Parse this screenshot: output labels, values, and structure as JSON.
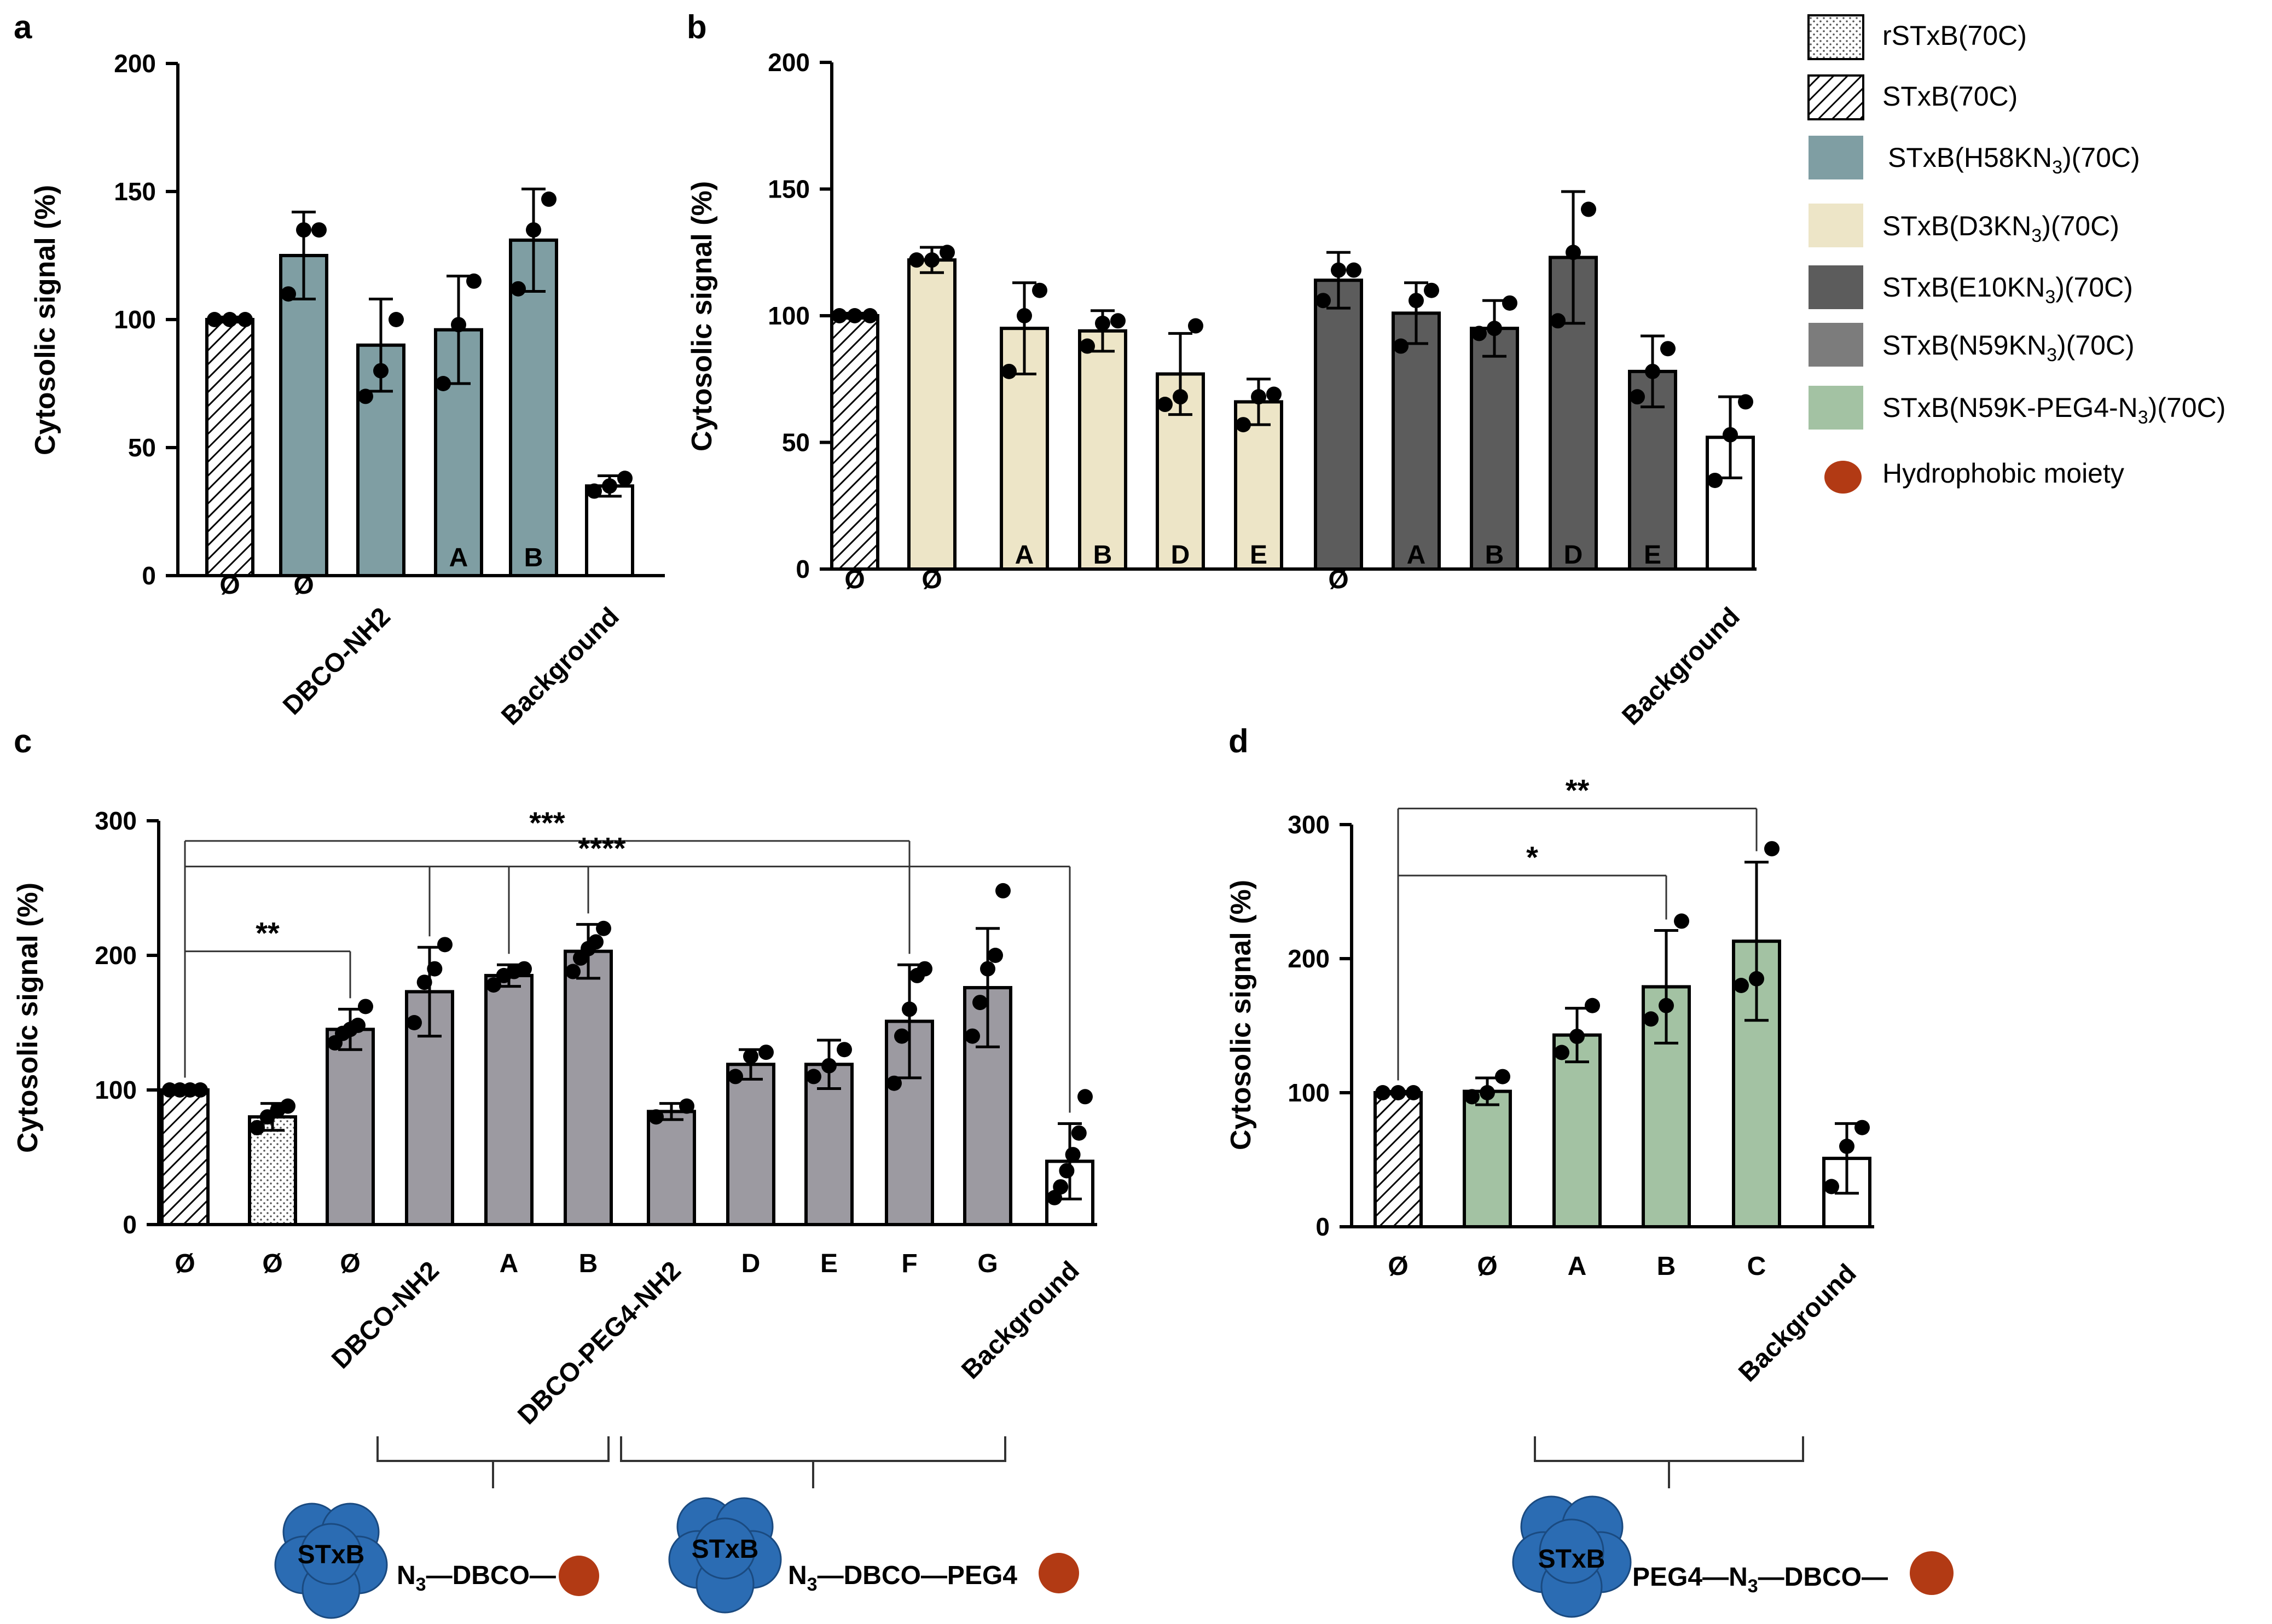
{
  "colors": {
    "teal": "#7f9ea3",
    "cream": "#ede5c7",
    "dark": "#5c5c5c",
    "gray": "#9c9aa1",
    "green": "#a3c2a3",
    "white": "#ffffff",
    "moiety": "#b23a14",
    "stxb": "#2b6cb3"
  },
  "legend": {
    "items": [
      {
        "label": "rSTxB(70C)",
        "style": "dots"
      },
      {
        "label": "STxB(70C)",
        "style": "hatch"
      },
      {
        "label": "STxB(H58KN3)(70C)",
        "style": "teal"
      },
      {
        "label": "STxB(D3KN3)(70C)",
        "style": "cream"
      },
      {
        "label": "STxB(E10KN3)(70C)",
        "style": "dark"
      },
      {
        "label": "STxB(N59KN3)(70C)",
        "style": "gray"
      },
      {
        "label": "STxB(N59K-PEG4-N3)(70C)",
        "style": "green"
      },
      {
        "label": "Hydrophobic moiety",
        "style": "moiety"
      }
    ]
  },
  "chart_data": [
    {
      "panel": "a",
      "type": "bar",
      "ylabel": "Cytosolic signal (%)",
      "ylim": [
        0,
        200
      ],
      "yticks": [
        0,
        50,
        100,
        150,
        200
      ],
      "categories": [
        "Ø",
        "Ø",
        "DBCO-NH2",
        "A",
        "B",
        "Background"
      ],
      "values": [
        100,
        125,
        90,
        96,
        131,
        35
      ],
      "errors": [
        1,
        17,
        18,
        21,
        20,
        4
      ],
      "fills": [
        "hatch",
        "teal",
        "teal",
        "teal",
        "teal",
        "white"
      ],
      "points": [
        [
          100,
          100,
          100
        ],
        [
          110,
          135,
          135
        ],
        [
          70,
          80,
          100
        ],
        [
          75,
          98,
          115
        ],
        [
          112,
          135,
          147
        ],
        [
          33,
          35,
          38
        ]
      ]
    },
    {
      "panel": "b",
      "type": "bar",
      "ylabel": "Cytosolic signal (%)",
      "ylim": [
        0,
        200
      ],
      "yticks": [
        0,
        50,
        100,
        150,
        200
      ],
      "categories": [
        "Ø",
        "Ø",
        "A",
        "B",
        "D",
        "E",
        "Ø",
        "A",
        "B",
        "D",
        "E",
        "Background"
      ],
      "values": [
        100,
        122,
        95,
        94,
        77,
        66,
        114,
        101,
        95,
        123,
        78,
        52
      ],
      "errors": [
        1,
        5,
        18,
        8,
        16,
        9,
        11,
        12,
        11,
        26,
        14,
        16
      ],
      "fills": [
        "hatch",
        "cream",
        "cream",
        "cream",
        "cream",
        "cream",
        "dark",
        "dark",
        "dark",
        "dark",
        "dark",
        "white"
      ],
      "points": [
        [
          100,
          100,
          100
        ],
        [
          122,
          122,
          125
        ],
        [
          78,
          100,
          110
        ],
        [
          88,
          97,
          98
        ],
        [
          65,
          68,
          96
        ],
        [
          57,
          68,
          69
        ],
        [
          106,
          118,
          118
        ],
        [
          88,
          106,
          110
        ],
        [
          93,
          95,
          105
        ],
        [
          98,
          125,
          142
        ],
        [
          68,
          78,
          87
        ],
        [
          35,
          53,
          66
        ]
      ]
    },
    {
      "panel": "c",
      "type": "bar",
      "ylabel": "Cytosolic signal (%)",
      "ylim": [
        0,
        300
      ],
      "yticks": [
        0,
        100,
        200,
        300
      ],
      "categories": [
        "Ø",
        "Ø",
        "Ø",
        "DBCO-NH2",
        "A",
        "B",
        "DBCO-PEG4-NH2",
        "D",
        "E",
        "F",
        "G",
        "Background"
      ],
      "values": [
        100,
        80,
        145,
        173,
        185,
        203,
        84,
        119,
        119,
        151,
        176,
        47
      ],
      "errors": [
        1,
        10,
        15,
        33,
        8,
        20,
        6,
        11,
        18,
        42,
        44,
        28
      ],
      "fills": [
        "hatch",
        "dots",
        "gray",
        "gray",
        "gray",
        "gray",
        "gray",
        "gray",
        "gray",
        "gray",
        "gray",
        "white"
      ],
      "points": [
        [
          100,
          100,
          100,
          100
        ],
        [
          72,
          80,
          85,
          88
        ],
        [
          135,
          142,
          145,
          148,
          162
        ],
        [
          150,
          180,
          190,
          208
        ],
        [
          178,
          185,
          188,
          190
        ],
        [
          188,
          198,
          205,
          210,
          220
        ],
        [
          80,
          88
        ],
        [
          110,
          125,
          128
        ],
        [
          110,
          118,
          130
        ],
        [
          105,
          140,
          160,
          185,
          190
        ],
        [
          140,
          165,
          190,
          200,
          248
        ],
        [
          20,
          28,
          40,
          52,
          68,
          95
        ]
      ],
      "significance": [
        {
          "label": "***",
          "from": 0,
          "to": [
            9
          ],
          "level": 285
        },
        {
          "label": "****",
          "from": 0,
          "to": [
            3,
            4,
            5,
            11
          ],
          "level": 266
        },
        {
          "label": "**",
          "from": 0,
          "to": [
            2
          ],
          "level": 203
        }
      ]
    },
    {
      "panel": "d",
      "type": "bar",
      "ylabel": "Cytosolic signal (%)",
      "ylim": [
        0,
        300
      ],
      "yticks": [
        0,
        100,
        200,
        300
      ],
      "categories": [
        "Ø",
        "Ø",
        "A",
        "B",
        "C",
        "Background"
      ],
      "values": [
        100,
        101,
        143,
        179,
        213,
        51
      ],
      "errors": [
        1,
        10,
        20,
        42,
        59,
        26
      ],
      "fills": [
        "hatch",
        "green",
        "green",
        "green",
        "green",
        "white"
      ],
      "points": [
        [
          100,
          100,
          100
        ],
        [
          97,
          100,
          112
        ],
        [
          130,
          142,
          165
        ],
        [
          155,
          165,
          228
        ],
        [
          180,
          185,
          282
        ],
        [
          30,
          60,
          74
        ]
      ],
      "significance": [
        {
          "label": "**",
          "from": 0,
          "to": [
            4
          ],
          "level": 312
        },
        {
          "label": "*",
          "from": 0,
          "to": [
            3
          ],
          "level": 262
        }
      ]
    }
  ],
  "diagrams": {
    "c_left": {
      "body": "STxB",
      "chain": "N3—DBCO—"
    },
    "c_right": {
      "body": "STxB",
      "chain": "N3—DBCO—PEG4"
    },
    "d": {
      "body": "STxB",
      "chain": "PEG4—N3—DBCO—"
    }
  }
}
